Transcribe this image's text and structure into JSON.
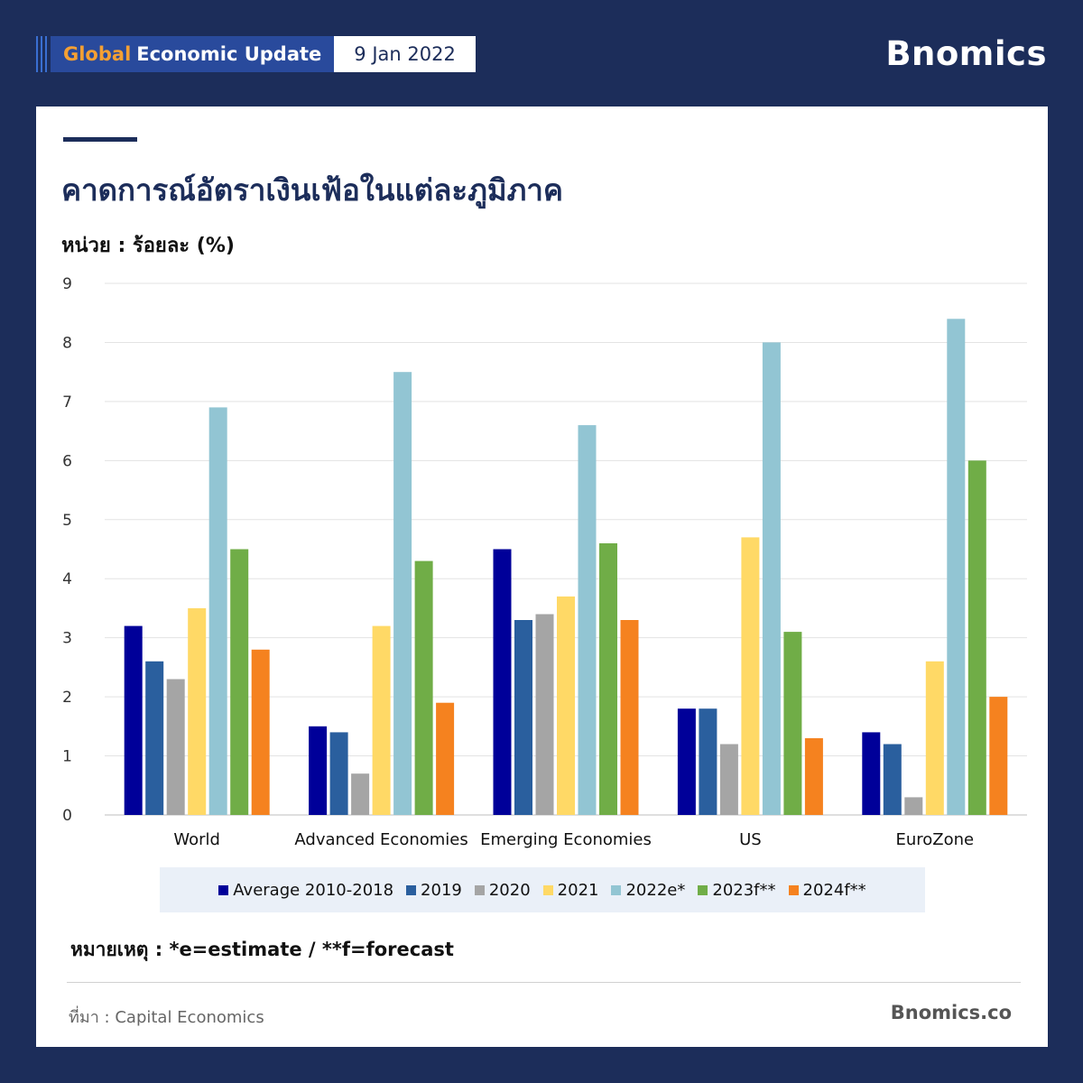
{
  "header": {
    "title_accent": "Global",
    "title_rest": "Economic Update",
    "date": "9 Jan 2022",
    "brand": "Bnomics"
  },
  "card": {
    "title": "คาดการณ์อัตราเงินเฟ้อในแต่ละภูมิภาค",
    "unit": "หน่วย : ร้อยละ (%)",
    "note": "หมายเหตุ : *e=estimate / **f=forecast",
    "source": "ที่มา : Capital Economics",
    "footer_brand": "Bnomics.co"
  },
  "chart_data": {
    "type": "bar",
    "categories": [
      "World",
      "Advanced Economies",
      "Emerging Economies",
      "US",
      "EuroZone"
    ],
    "series": [
      {
        "name": "Average 2010-2018",
        "color": "#000099",
        "values": [
          3.2,
          1.5,
          4.5,
          1.8,
          1.4
        ]
      },
      {
        "name": "2019",
        "color": "#2a5f9e",
        "values": [
          2.6,
          1.4,
          3.3,
          1.8,
          1.2
        ]
      },
      {
        "name": "2020",
        "color": "#a5a5a5",
        "values": [
          2.3,
          0.7,
          3.4,
          1.2,
          0.3
        ]
      },
      {
        "name": "2021",
        "color": "#ffd966",
        "values": [
          3.5,
          3.2,
          3.7,
          4.7,
          2.6
        ]
      },
      {
        "name": "2022e*",
        "color": "#92c5d3",
        "values": [
          6.9,
          7.5,
          6.6,
          8.0,
          8.4
        ]
      },
      {
        "name": "2023f**",
        "color": "#70ad47",
        "values": [
          4.5,
          4.3,
          4.6,
          3.1,
          6.0
        ]
      },
      {
        "name": "2024f**",
        "color": "#f5821f",
        "values": [
          2.8,
          1.9,
          3.3,
          1.3,
          2.0
        ]
      }
    ],
    "yticks": [
      "0",
      "1",
      "2",
      "3",
      "4",
      "5",
      "6",
      "7",
      "8",
      "9"
    ],
    "ylim": [
      0,
      9
    ],
    "grid": true,
    "legend": "bottom"
  }
}
